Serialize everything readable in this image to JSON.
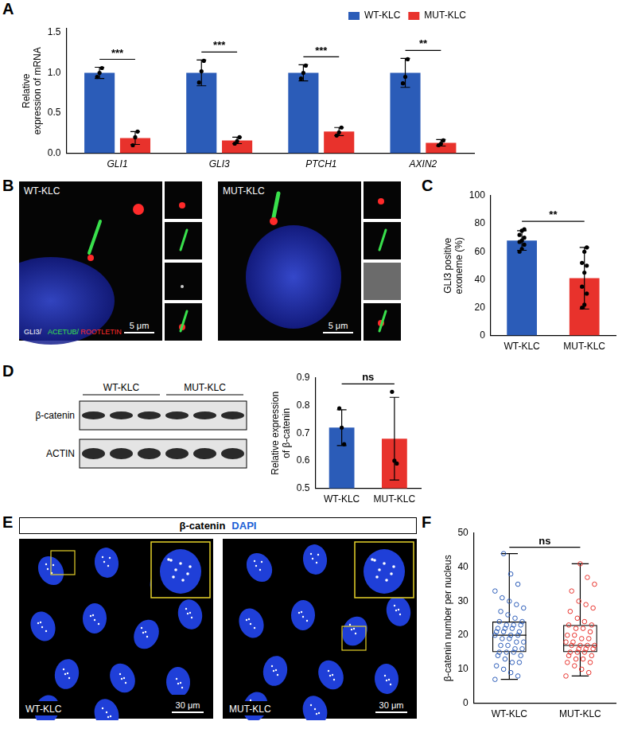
{
  "chart_data": [
    {
      "panel": "A",
      "type": "bar",
      "y_label": "Relative expression of mRNA",
      "categories": [
        "GLI1",
        "GLI3",
        "PTCH1",
        "AXIN2"
      ],
      "series": [
        {
          "name": "WT-KLC",
          "color": "#2b5cb8",
          "values": [
            1.0,
            1.0,
            1.0,
            1.0
          ],
          "errors": [
            0.07,
            0.16,
            0.1,
            0.18
          ],
          "points": [
            [
              0.95,
              1.0,
              1.06
            ],
            [
              0.88,
              1.02,
              1.15
            ],
            [
              0.93,
              1.0,
              1.09
            ],
            [
              0.87,
              0.95,
              1.17
            ]
          ]
        },
        {
          "name": "MUT-KLC",
          "color": "#e8322c",
          "values": [
            0.19,
            0.16,
            0.27,
            0.13
          ],
          "errors": [
            0.08,
            0.04,
            0.05,
            0.04
          ],
          "points": [
            [
              0.1,
              0.2,
              0.27
            ],
            [
              0.12,
              0.15,
              0.2
            ],
            [
              0.22,
              0.26,
              0.32
            ],
            [
              0.1,
              0.12,
              0.16
            ]
          ]
        }
      ],
      "significance": [
        "***",
        "***",
        "***",
        "**"
      ],
      "ylim": [
        0,
        1.55
      ],
      "yticks": [
        {
          "value": 0,
          "label": "0.0"
        },
        {
          "value": 0.5,
          "label": "0.5"
        },
        {
          "value": 1,
          "label": "1.0"
        },
        {
          "value": 1.5,
          "label": "1.5"
        }
      ],
      "legend": "top-right",
      "grid": false
    },
    {
      "panel": "C",
      "type": "bar",
      "y_label": "GLI3 positive exoneme (%)",
      "categories": [
        "WT-KLC",
        "MUT-KLC"
      ],
      "colors": [
        "#2b5cb8",
        "#e8322c"
      ],
      "values": [
        68,
        41
      ],
      "errors": [
        7,
        22
      ],
      "points": [
        [
          60,
          62,
          65,
          67,
          68,
          70,
          72,
          75,
          76
        ],
        [
          20,
          22,
          30,
          35,
          45,
          50,
          52,
          60,
          63
        ]
      ],
      "significance": "**",
      "ylim": [
        0,
        100
      ],
      "yticks": [
        0,
        20,
        40,
        60,
        80,
        100
      ],
      "grid": false
    },
    {
      "panel": "D",
      "type": "bar",
      "y_label": "Relative expression of β-catenin",
      "categories": [
        "WT-KLC",
        "MUT-KLC"
      ],
      "colors": [
        "#2b5cb8",
        "#e8322c"
      ],
      "values": [
        0.72,
        0.68
      ],
      "errors": [
        0.065,
        0.15
      ],
      "points": [
        [
          0.79,
          0.72,
          0.66
        ],
        [
          0.85,
          0.6,
          0.59
        ]
      ],
      "significance": "ns",
      "ylim": [
        0.5,
        0.9
      ],
      "yticks": [
        0.5,
        0.6,
        0.7,
        0.8,
        0.9
      ],
      "grid": false
    },
    {
      "panel": "F",
      "type": "box",
      "y_label": "β-catenin number per nucleus",
      "categories": [
        "WT-KLC",
        "MUT-KLC"
      ],
      "colors": [
        "#2b5cb8",
        "#e8322c"
      ],
      "boxes": [
        {
          "min": 7,
          "q1": 15,
          "median": 20,
          "q3": 24,
          "max": 44
        },
        {
          "min": 8,
          "q1": 15,
          "median": 17,
          "q3": 23,
          "max": 41
        }
      ],
      "points": [
        [
          7,
          8,
          9,
          10,
          11,
          12,
          12,
          13,
          14,
          14,
          15,
          15,
          15,
          16,
          16,
          17,
          17,
          18,
          18,
          19,
          19,
          20,
          20,
          20,
          21,
          21,
          21,
          22,
          22,
          22,
          23,
          23,
          23,
          24,
          24,
          25,
          26,
          27,
          28,
          29,
          30,
          31,
          33,
          35,
          38,
          44
        ],
        [
          8,
          9,
          10,
          11,
          12,
          12,
          13,
          13,
          14,
          14,
          15,
          15,
          15,
          16,
          16,
          16,
          17,
          17,
          17,
          17,
          18,
          18,
          19,
          19,
          20,
          20,
          21,
          22,
          22,
          23,
          23,
          24,
          25,
          27,
          28,
          29,
          30,
          33,
          35,
          37,
          41
        ]
      ],
      "significance": "ns",
      "ylim": [
        0,
        50
      ],
      "yticks": [
        0,
        10,
        20,
        30,
        40,
        50
      ],
      "grid": false
    }
  ],
  "images": {
    "B": {
      "panel": "B",
      "labels": [
        "WT-KLC",
        "MUT-KLC"
      ],
      "channels": [
        {
          "text": "GLI3/",
          "color": "#ffffff"
        },
        {
          "text": "ACETUB/",
          "color": "#39e04c"
        },
        {
          "text": "ROOTLETIN",
          "color": "#ff2a2a"
        }
      ],
      "scale_bar": "5 μm"
    },
    "D_blot": {
      "lanes": [
        "WT-KLC",
        "MUT-KLC"
      ],
      "rows": [
        "β-catenin",
        "ACTIN"
      ]
    },
    "E": {
      "panel": "E",
      "header": [
        {
          "text": "β-catenin",
          "color": "#000000"
        },
        {
          "text": "DAPI",
          "color": "#1b5fd6"
        }
      ],
      "labels": [
        "WT-KLC",
        "MUT-KLC"
      ],
      "scale_bar": "30 μm"
    }
  }
}
